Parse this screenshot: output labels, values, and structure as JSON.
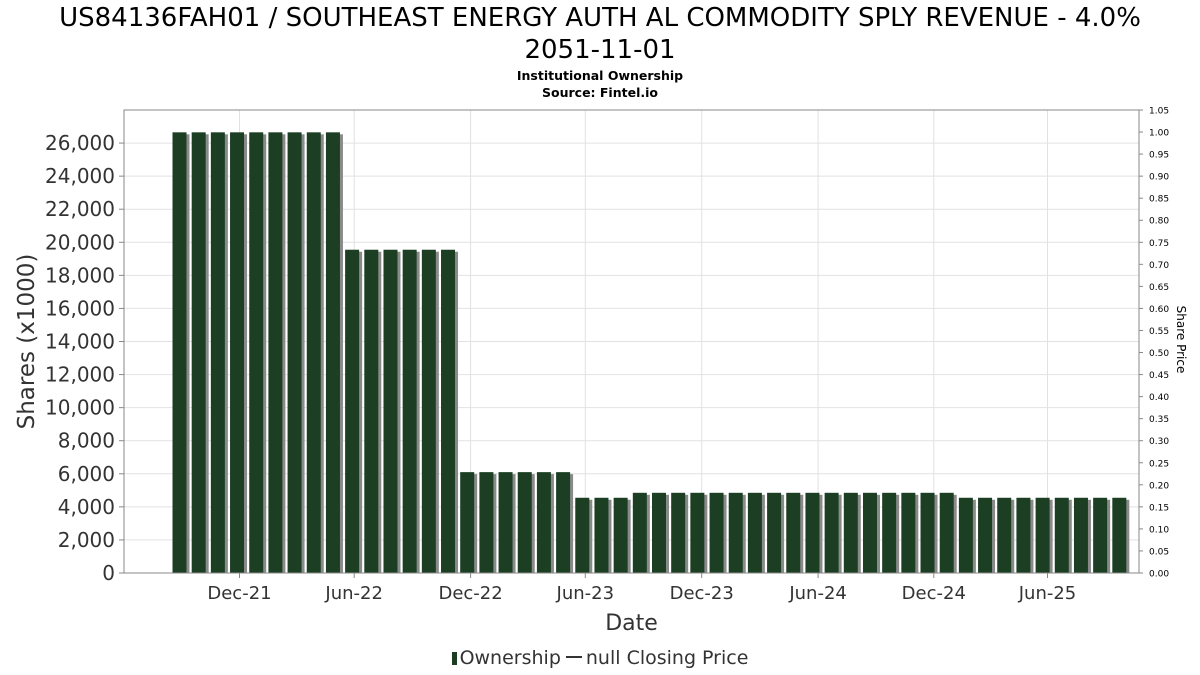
{
  "chart_data": {
    "type": "bar",
    "title": "US84136FAH01 / SOUTHEAST ENERGY AUTH AL COMMODITY SPLY REVENUE - 4.0%",
    "title_line2": "2051-11-01",
    "subtitle": "Institutional Ownership",
    "source": "Source: Fintel.io",
    "xlabel": "Date",
    "ylabel": "Shares (x1000)",
    "y2label": "Share Price",
    "ylim": [
      0,
      28000
    ],
    "y2lim": [
      0,
      1.05
    ],
    "yticks": [
      "0",
      "2,000",
      "4,000",
      "6,000",
      "8,000",
      "10,000",
      "12,000",
      "14,000",
      "16,000",
      "18,000",
      "20,000",
      "22,000",
      "24,000",
      "26,000"
    ],
    "y2ticks": [
      "0.00",
      "0.05",
      "0.10",
      "0.15",
      "0.20",
      "0.25",
      "0.30",
      "0.35",
      "0.40",
      "0.45",
      "0.50",
      "0.55",
      "0.60",
      "0.65",
      "0.70",
      "0.75",
      "0.80",
      "0.85",
      "0.90",
      "0.95",
      "1.00",
      "1.05"
    ],
    "xticks": [
      "Dec-21",
      "Jun-22",
      "Dec-22",
      "Jun-23",
      "Dec-23",
      "Jun-24",
      "Dec-24",
      "Jun-25"
    ],
    "grid": true,
    "legend": [
      "Ownership",
      "null Closing Price"
    ],
    "legend_position": "bottom",
    "series": [
      {
        "name": "Ownership",
        "color": "#1c3f24",
        "values": [
          26650,
          26650,
          26650,
          26650,
          26650,
          26650,
          26650,
          26650,
          26650,
          19550,
          19550,
          19550,
          19550,
          19550,
          19550,
          6100,
          6100,
          6100,
          6100,
          6100,
          6100,
          4550,
          4550,
          4550,
          4850,
          4850,
          4850,
          4850,
          4850,
          4850,
          4850,
          4850,
          4850,
          4850,
          4850,
          4850,
          4850,
          4850,
          4850,
          4850,
          4850,
          4550,
          4550,
          4550,
          4550,
          4550,
          4550,
          4550,
          4550,
          4550
        ]
      }
    ]
  }
}
